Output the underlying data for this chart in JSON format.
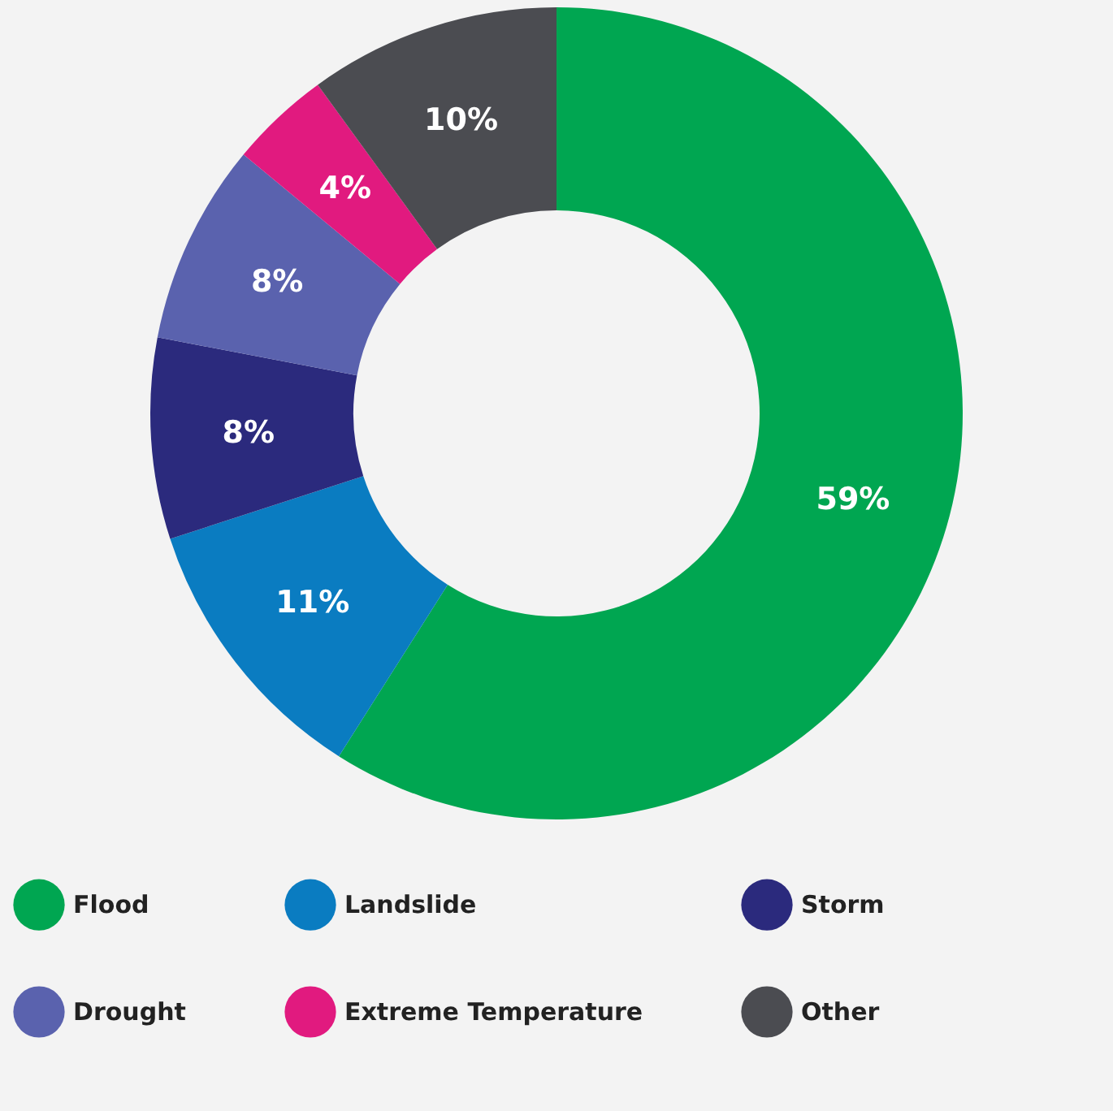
{
  "chart_data": {
    "type": "donut",
    "categories": [
      "Flood",
      "Landslide",
      "Storm",
      "Drought",
      "Extreme Temperature",
      "Other"
    ],
    "values": [
      59,
      11,
      8,
      8,
      4,
      10
    ],
    "value_labels": [
      "59%",
      "11%",
      "8%",
      "8%",
      "4%",
      "10%"
    ],
    "colors": [
      "#00a651",
      "#0a7cc1",
      "#2b2a7d",
      "#5a62ae",
      "#e11a7f",
      "#4b4c51"
    ],
    "legend": "bottom"
  }
}
